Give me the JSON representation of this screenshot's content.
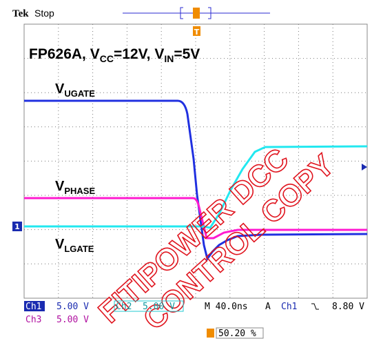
{
  "header": {
    "brand": "Tek",
    "state": "Stop"
  },
  "screen": {
    "title": [
      "FP626A, V",
      "CC",
      "=12V, V",
      "IN",
      "=5V"
    ],
    "labels": [
      [
        "V",
        "UGATE"
      ],
      [
        "V",
        "PHASE"
      ],
      [
        "V",
        "LGATE"
      ]
    ],
    "channel_marker": "1",
    "trigger_marker": "T"
  },
  "status": {
    "ch1": {
      "name": "Ch1",
      "scale": "5.00 V"
    },
    "ch2": {
      "name": "Ch2",
      "scale": "5.00 V"
    },
    "ch3": {
      "name": "Ch3",
      "scale": "5.00 V"
    },
    "timebase": "M 40.0ns",
    "trigger": {
      "mode": "A",
      "source": "Ch1",
      "level": "8.80 V"
    },
    "position": "50.20 %"
  },
  "watermark": [
    "FITIPOWER DCC",
    "CONTROL COPY"
  ]
}
